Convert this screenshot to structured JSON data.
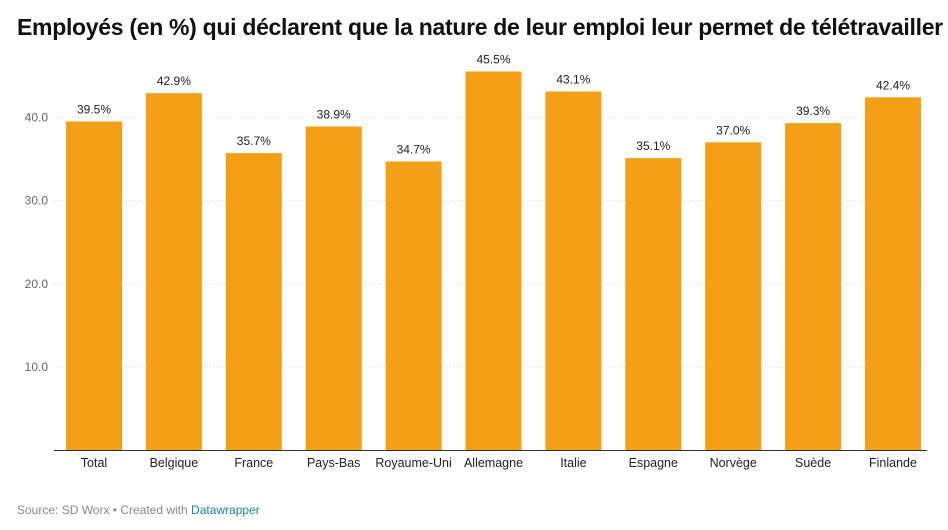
{
  "chart_data": {
    "type": "bar",
    "title": "Employés (en %) qui déclarent que la nature de leur emploi leur permet de télétravailler",
    "categories": [
      "Total",
      "Belgique",
      "France",
      "Pays-Bas",
      "Royaume-Uni",
      "Allemagne",
      "Italie",
      "Espagne",
      "Norvège",
      "Suède",
      "Finlande"
    ],
    "values": [
      39.5,
      42.9,
      35.7,
      38.9,
      34.7,
      45.5,
      43.1,
      35.1,
      37.0,
      39.3,
      42.4
    ],
    "value_labels": [
      "39.5%",
      "42.9%",
      "35.7%",
      "38.9%",
      "34.7%",
      "45.5%",
      "43.1%",
      "35.1%",
      "37.0%",
      "39.3%",
      "42.4%"
    ],
    "yticks": [
      10,
      20,
      30,
      40
    ],
    "ytick_labels": [
      "10.0",
      "20.0",
      "30.0",
      "40.0"
    ],
    "ylim": [
      0,
      50
    ],
    "xlabel": "",
    "ylabel": "",
    "grid": true,
    "bar_color": "#f4a017"
  },
  "footer": {
    "source_text": "Source: SD Worx • Created with ",
    "link_text": "Datawrapper"
  }
}
